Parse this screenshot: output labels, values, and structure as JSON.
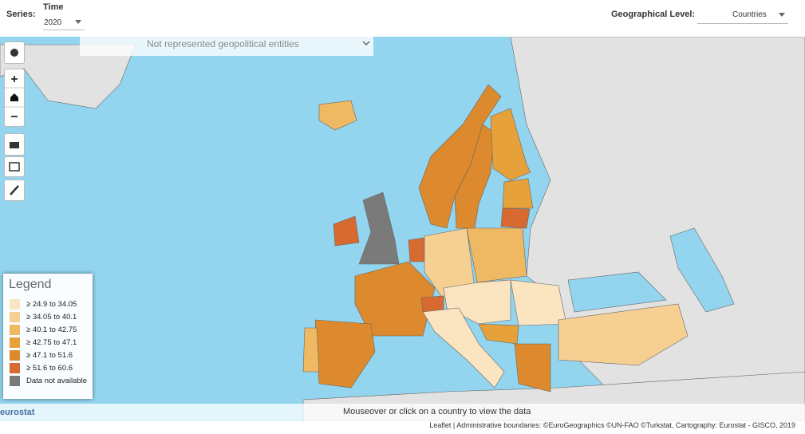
{
  "toolbar": {
    "series_label": "Series:",
    "time_label": "Time",
    "time_value": "2020",
    "geo_label": "Geographical Level:",
    "geo_value": "Countries"
  },
  "dropdown": "Not represented geopolitical entities",
  "legend": {
    "title": "Legend",
    "items": [
      {
        "label": "≥ 24.9 to 34.05",
        "color": "#fbe4c0"
      },
      {
        "label": "≥ 34.05 to 40.1",
        "color": "#f6cf93"
      },
      {
        "label": "≥ 40.1 to 42.75",
        "color": "#efb863"
      },
      {
        "label": "≥ 42.75 to 47.1",
        "color": "#e6a13a"
      },
      {
        "label": "≥ 47.1 to 51.6",
        "color": "#dc8a2d"
      },
      {
        "label": "≥ 51.6 to 60.6",
        "color": "#d66a31"
      },
      {
        "label": "Data not available",
        "color": "#7a7a7a"
      }
    ]
  },
  "footer": {
    "logo": "eurostat",
    "hint": "Mouseover or click on a country to view the data",
    "attribution": "Leaflet | Administrative boundaries: ©EuroGeographics ©UN-FAO ©Turkstat, Cartography: Eurostat - GISCO, 2019"
  }
}
